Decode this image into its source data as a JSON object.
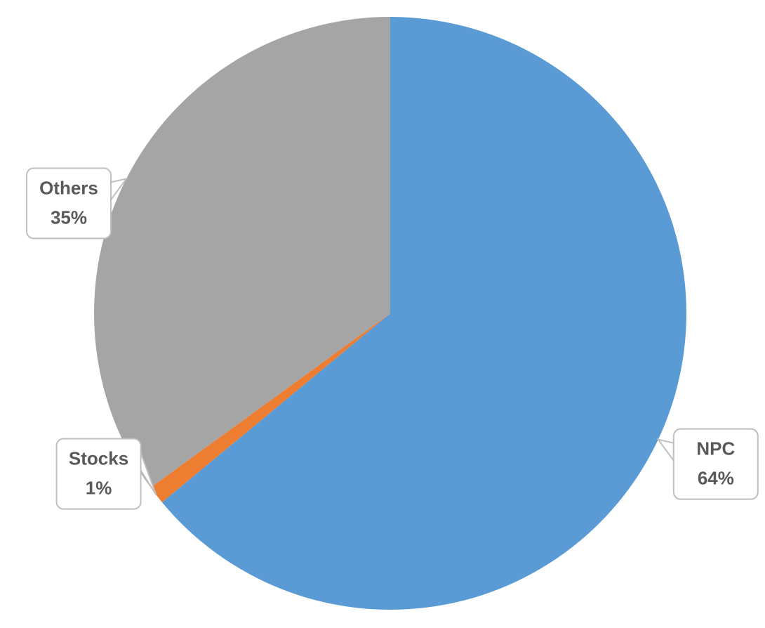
{
  "chart_data": {
    "type": "pie",
    "categories": [
      "NPC",
      "Stocks",
      "Others"
    ],
    "values": [
      64,
      1,
      35
    ],
    "value_labels": [
      "64%",
      "1%",
      "35%"
    ],
    "colors": [
      "#5b9bd5",
      "#ed7d31",
      "#a5a5a5"
    ]
  }
}
